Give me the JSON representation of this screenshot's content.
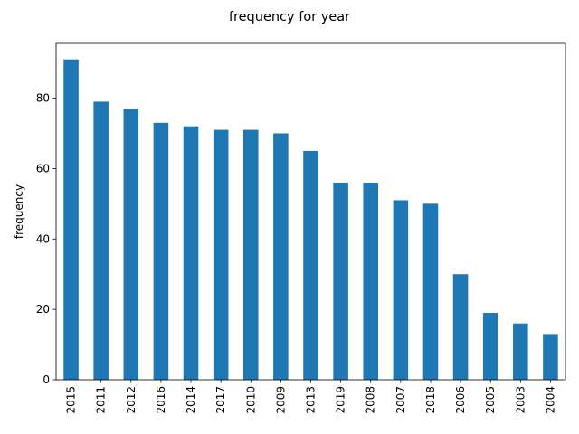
{
  "chart_data": {
    "type": "bar",
    "title": "frequency for year",
    "xlabel": "",
    "ylabel": "frequency",
    "categories": [
      "2015",
      "2011",
      "2012",
      "2016",
      "2014",
      "2017",
      "2010",
      "2009",
      "2013",
      "2019",
      "2008",
      "2007",
      "2018",
      "2006",
      "2005",
      "2003",
      "2004"
    ],
    "values": [
      91,
      79,
      77,
      73,
      72,
      71,
      71,
      70,
      65,
      56,
      56,
      51,
      50,
      30,
      19,
      16,
      13
    ],
    "ylim": [
      0,
      95.55
    ],
    "yticks": [
      0,
      20,
      40,
      60,
      80
    ],
    "grid": false,
    "legend": "none",
    "colors": {
      "bar": "#1f77b4",
      "axis": "#000000",
      "background": "#ffffff"
    }
  }
}
